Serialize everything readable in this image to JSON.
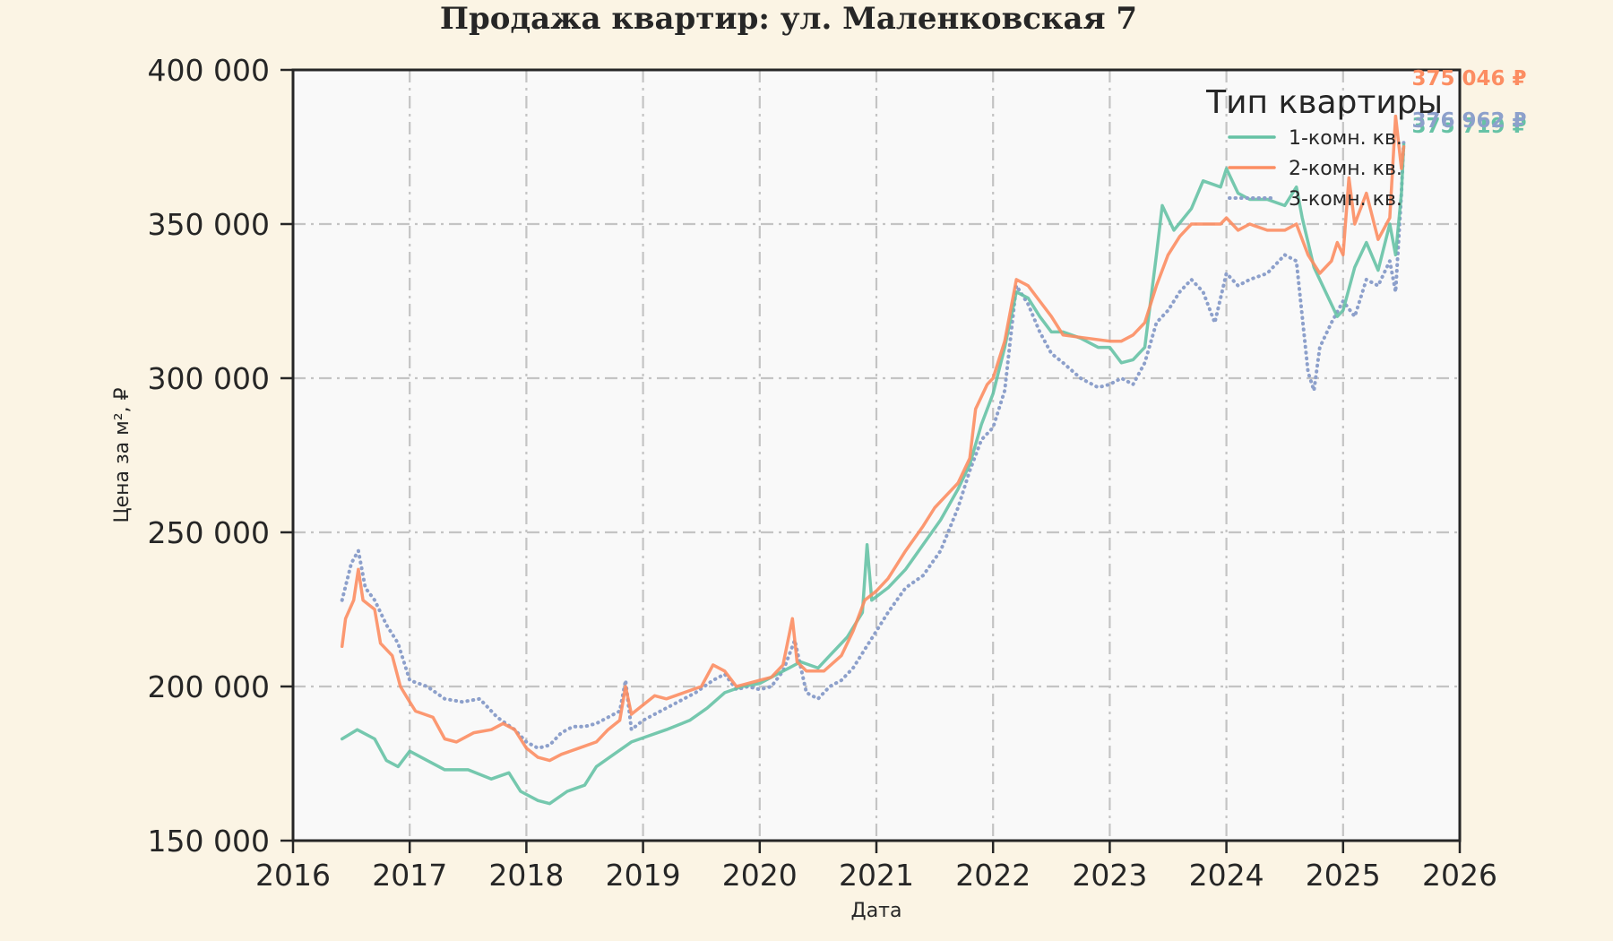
{
  "chart_data": {
    "type": "line",
    "title": "Продажа квартир: ул. Маленковская 7",
    "xlabel": "Дата",
    "ylabel": "Цена за м², ₽",
    "xlim": [
      2016,
      2026
    ],
    "ylim": [
      150000,
      400000
    ],
    "x_ticks": [
      "2016",
      "2017",
      "2018",
      "2019",
      "2020",
      "2021",
      "2022",
      "2023",
      "2024",
      "2025",
      "2026"
    ],
    "y_ticks": [
      {
        "value": 150000,
        "label": "150 000"
      },
      {
        "value": 200000,
        "label": "200 000"
      },
      {
        "value": 250000,
        "label": "250 000"
      },
      {
        "value": 300000,
        "label": "300 000"
      },
      {
        "value": 350000,
        "label": "350 000"
      },
      {
        "value": 400000,
        "label": "400 000"
      }
    ],
    "grid": true,
    "legend": {
      "title": "Тип квартиры",
      "position": "top-right"
    },
    "series": [
      {
        "name": "1-комн. кв.",
        "color": "#66C2A5",
        "style": "solid",
        "end_label": "375 719 ₽",
        "points": [
          [
            2016.42,
            183000
          ],
          [
            2016.55,
            186000
          ],
          [
            2016.7,
            183000
          ],
          [
            2016.8,
            176000
          ],
          [
            2016.9,
            174000
          ],
          [
            2017.0,
            179000
          ],
          [
            2017.15,
            176000
          ],
          [
            2017.3,
            173000
          ],
          [
            2017.5,
            173000
          ],
          [
            2017.7,
            170000
          ],
          [
            2017.85,
            172000
          ],
          [
            2017.95,
            166000
          ],
          [
            2018.1,
            163000
          ],
          [
            2018.2,
            162000
          ],
          [
            2018.35,
            166000
          ],
          [
            2018.5,
            168000
          ],
          [
            2018.6,
            174000
          ],
          [
            2018.75,
            178000
          ],
          [
            2018.9,
            182000
          ],
          [
            2019.05,
            184000
          ],
          [
            2019.2,
            186000
          ],
          [
            2019.4,
            189000
          ],
          [
            2019.55,
            193000
          ],
          [
            2019.7,
            198000
          ],
          [
            2019.85,
            200000
          ],
          [
            2020.0,
            201000
          ],
          [
            2020.15,
            204000
          ],
          [
            2020.25,
            206000
          ],
          [
            2020.35,
            208000
          ],
          [
            2020.5,
            206000
          ],
          [
            2020.6,
            210000
          ],
          [
            2020.75,
            216000
          ],
          [
            2020.88,
            224000
          ],
          [
            2020.92,
            246000
          ],
          [
            2020.96,
            228000
          ],
          [
            2021.1,
            232000
          ],
          [
            2021.25,
            238000
          ],
          [
            2021.4,
            246000
          ],
          [
            2021.55,
            254000
          ],
          [
            2021.7,
            264000
          ],
          [
            2021.8,
            272000
          ],
          [
            2021.9,
            285000
          ],
          [
            2022.0,
            295000
          ],
          [
            2022.1,
            310000
          ],
          [
            2022.2,
            328000
          ],
          [
            2022.3,
            326000
          ],
          [
            2022.4,
            320000
          ],
          [
            2022.5,
            315000
          ],
          [
            2022.6,
            315000
          ],
          [
            2022.75,
            313000
          ],
          [
            2022.9,
            310000
          ],
          [
            2023.0,
            310000
          ],
          [
            2023.1,
            305000
          ],
          [
            2023.2,
            306000
          ],
          [
            2023.3,
            310000
          ],
          [
            2023.4,
            340000
          ],
          [
            2023.45,
            356000
          ],
          [
            2023.55,
            348000
          ],
          [
            2023.7,
            355000
          ],
          [
            2023.8,
            364000
          ],
          [
            2023.95,
            362000
          ],
          [
            2024.0,
            368000
          ],
          [
            2024.1,
            360000
          ],
          [
            2024.2,
            358000
          ],
          [
            2024.35,
            358000
          ],
          [
            2024.5,
            356000
          ],
          [
            2024.6,
            362000
          ],
          [
            2024.65,
            352000
          ],
          [
            2024.75,
            336000
          ],
          [
            2024.85,
            328000
          ],
          [
            2024.95,
            320000
          ],
          [
            2025.0,
            322000
          ],
          [
            2025.1,
            336000
          ],
          [
            2025.2,
            344000
          ],
          [
            2025.3,
            335000
          ],
          [
            2025.4,
            350000
          ],
          [
            2025.45,
            340000
          ],
          [
            2025.5,
            360000
          ],
          [
            2025.52,
            375719
          ]
        ]
      },
      {
        "name": "2-комн. кв.",
        "color": "#FC8D62",
        "style": "solid",
        "end_label": "375 046 ₽",
        "points": [
          [
            2016.42,
            213000
          ],
          [
            2016.45,
            222000
          ],
          [
            2016.52,
            228000
          ],
          [
            2016.56,
            238000
          ],
          [
            2016.6,
            228000
          ],
          [
            2016.7,
            225000
          ],
          [
            2016.75,
            214000
          ],
          [
            2016.85,
            210000
          ],
          [
            2016.92,
            200000
          ],
          [
            2017.0,
            195000
          ],
          [
            2017.05,
            192000
          ],
          [
            2017.2,
            190000
          ],
          [
            2017.3,
            183000
          ],
          [
            2017.4,
            182000
          ],
          [
            2017.55,
            185000
          ],
          [
            2017.7,
            186000
          ],
          [
            2017.8,
            188000
          ],
          [
            2017.9,
            186000
          ],
          [
            2018.0,
            180000
          ],
          [
            2018.1,
            177000
          ],
          [
            2018.2,
            176000
          ],
          [
            2018.3,
            178000
          ],
          [
            2018.45,
            180000
          ],
          [
            2018.6,
            182000
          ],
          [
            2018.7,
            186000
          ],
          [
            2018.8,
            189000
          ],
          [
            2018.85,
            200000
          ],
          [
            2018.9,
            191000
          ],
          [
            2019.0,
            194000
          ],
          [
            2019.1,
            197000
          ],
          [
            2019.2,
            196000
          ],
          [
            2019.35,
            198000
          ],
          [
            2019.5,
            200000
          ],
          [
            2019.6,
            207000
          ],
          [
            2019.7,
            205000
          ],
          [
            2019.8,
            200000
          ],
          [
            2019.9,
            201000
          ],
          [
            2020.0,
            202000
          ],
          [
            2020.1,
            203000
          ],
          [
            2020.2,
            207000
          ],
          [
            2020.28,
            222000
          ],
          [
            2020.32,
            208000
          ],
          [
            2020.4,
            205000
          ],
          [
            2020.55,
            205000
          ],
          [
            2020.7,
            210000
          ],
          [
            2020.8,
            218000
          ],
          [
            2020.9,
            228000
          ],
          [
            2021.0,
            231000
          ],
          [
            2021.1,
            235000
          ],
          [
            2021.25,
            244000
          ],
          [
            2021.4,
            252000
          ],
          [
            2021.5,
            258000
          ],
          [
            2021.6,
            262000
          ],
          [
            2021.7,
            266000
          ],
          [
            2021.8,
            274000
          ],
          [
            2021.85,
            290000
          ],
          [
            2021.95,
            298000
          ],
          [
            2022.0,
            300000
          ],
          [
            2022.1,
            312000
          ],
          [
            2022.2,
            332000
          ],
          [
            2022.3,
            330000
          ],
          [
            2022.4,
            325000
          ],
          [
            2022.5,
            320000
          ],
          [
            2022.6,
            314000
          ],
          [
            2022.8,
            313000
          ],
          [
            2023.0,
            312000
          ],
          [
            2023.1,
            312000
          ],
          [
            2023.2,
            314000
          ],
          [
            2023.3,
            318000
          ],
          [
            2023.4,
            330000
          ],
          [
            2023.5,
            340000
          ],
          [
            2023.6,
            346000
          ],
          [
            2023.7,
            350000
          ],
          [
            2023.8,
            350000
          ],
          [
            2023.95,
            350000
          ],
          [
            2024.0,
            352000
          ],
          [
            2024.1,
            348000
          ],
          [
            2024.2,
            350000
          ],
          [
            2024.35,
            348000
          ],
          [
            2024.5,
            348000
          ],
          [
            2024.6,
            350000
          ],
          [
            2024.7,
            340000
          ],
          [
            2024.8,
            334000
          ],
          [
            2024.9,
            338000
          ],
          [
            2024.95,
            344000
          ],
          [
            2025.0,
            340000
          ],
          [
            2025.05,
            365000
          ],
          [
            2025.1,
            350000
          ],
          [
            2025.2,
            360000
          ],
          [
            2025.3,
            345000
          ],
          [
            2025.4,
            352000
          ],
          [
            2025.45,
            385000
          ],
          [
            2025.5,
            368000
          ],
          [
            2025.52,
            375046
          ]
        ]
      },
      {
        "name": "3-комн. кв.",
        "color": "#8DA0CB",
        "style": "dotted",
        "end_label": "376 962 ₽",
        "points": [
          [
            2016.42,
            228000
          ],
          [
            2016.5,
            240000
          ],
          [
            2016.56,
            244000
          ],
          [
            2016.62,
            232000
          ],
          [
            2016.7,
            228000
          ],
          [
            2016.8,
            220000
          ],
          [
            2016.9,
            214000
          ],
          [
            2017.0,
            202000
          ],
          [
            2017.15,
            200000
          ],
          [
            2017.3,
            196000
          ],
          [
            2017.45,
            195000
          ],
          [
            2017.6,
            196000
          ],
          [
            2017.75,
            190000
          ],
          [
            2017.9,
            186000
          ],
          [
            2018.0,
            182000
          ],
          [
            2018.1,
            180000
          ],
          [
            2018.2,
            181000
          ],
          [
            2018.3,
            185000
          ],
          [
            2018.4,
            187000
          ],
          [
            2018.5,
            187000
          ],
          [
            2018.6,
            188000
          ],
          [
            2018.7,
            190000
          ],
          [
            2018.8,
            192000
          ],
          [
            2018.85,
            202000
          ],
          [
            2018.9,
            186000
          ],
          [
            2019.0,
            189000
          ],
          [
            2019.15,
            192000
          ],
          [
            2019.3,
            195000
          ],
          [
            2019.45,
            198000
          ],
          [
            2019.6,
            202000
          ],
          [
            2019.7,
            204000
          ],
          [
            2019.8,
            199000
          ],
          [
            2019.9,
            200000
          ],
          [
            2020.0,
            199000
          ],
          [
            2020.1,
            200000
          ],
          [
            2020.2,
            205000
          ],
          [
            2020.3,
            215000
          ],
          [
            2020.4,
            198000
          ],
          [
            2020.5,
            196000
          ],
          [
            2020.6,
            200000
          ],
          [
            2020.7,
            202000
          ],
          [
            2020.8,
            206000
          ],
          [
            2020.9,
            212000
          ],
          [
            2021.0,
            218000
          ],
          [
            2021.1,
            224000
          ],
          [
            2021.25,
            232000
          ],
          [
            2021.4,
            236000
          ],
          [
            2021.55,
            244000
          ],
          [
            2021.7,
            258000
          ],
          [
            2021.8,
            270000
          ],
          [
            2021.9,
            280000
          ],
          [
            2022.0,
            284000
          ],
          [
            2022.1,
            296000
          ],
          [
            2022.2,
            330000
          ],
          [
            2022.3,
            324000
          ],
          [
            2022.4,
            315000
          ],
          [
            2022.5,
            308000
          ],
          [
            2022.6,
            305000
          ],
          [
            2022.75,
            300000
          ],
          [
            2022.9,
            297000
          ],
          [
            2023.0,
            298000
          ],
          [
            2023.1,
            300000
          ],
          [
            2023.2,
            298000
          ],
          [
            2023.3,
            305000
          ],
          [
            2023.4,
            318000
          ],
          [
            2023.5,
            322000
          ],
          [
            2023.6,
            328000
          ],
          [
            2023.7,
            332000
          ],
          [
            2023.8,
            328000
          ],
          [
            2023.9,
            318000
          ],
          [
            2024.0,
            334000
          ],
          [
            2024.1,
            330000
          ],
          [
            2024.2,
            332000
          ],
          [
            2024.35,
            334000
          ],
          [
            2024.5,
            340000
          ],
          [
            2024.6,
            338000
          ],
          [
            2024.65,
            320000
          ],
          [
            2024.7,
            302000
          ],
          [
            2024.75,
            296000
          ],
          [
            2024.8,
            310000
          ],
          [
            2024.9,
            318000
          ],
          [
            2025.0,
            325000
          ],
          [
            2025.1,
            320000
          ],
          [
            2025.2,
            332000
          ],
          [
            2025.3,
            330000
          ],
          [
            2025.4,
            338000
          ],
          [
            2025.45,
            328000
          ],
          [
            2025.5,
            360000
          ],
          [
            2025.52,
            376962
          ]
        ]
      }
    ]
  }
}
